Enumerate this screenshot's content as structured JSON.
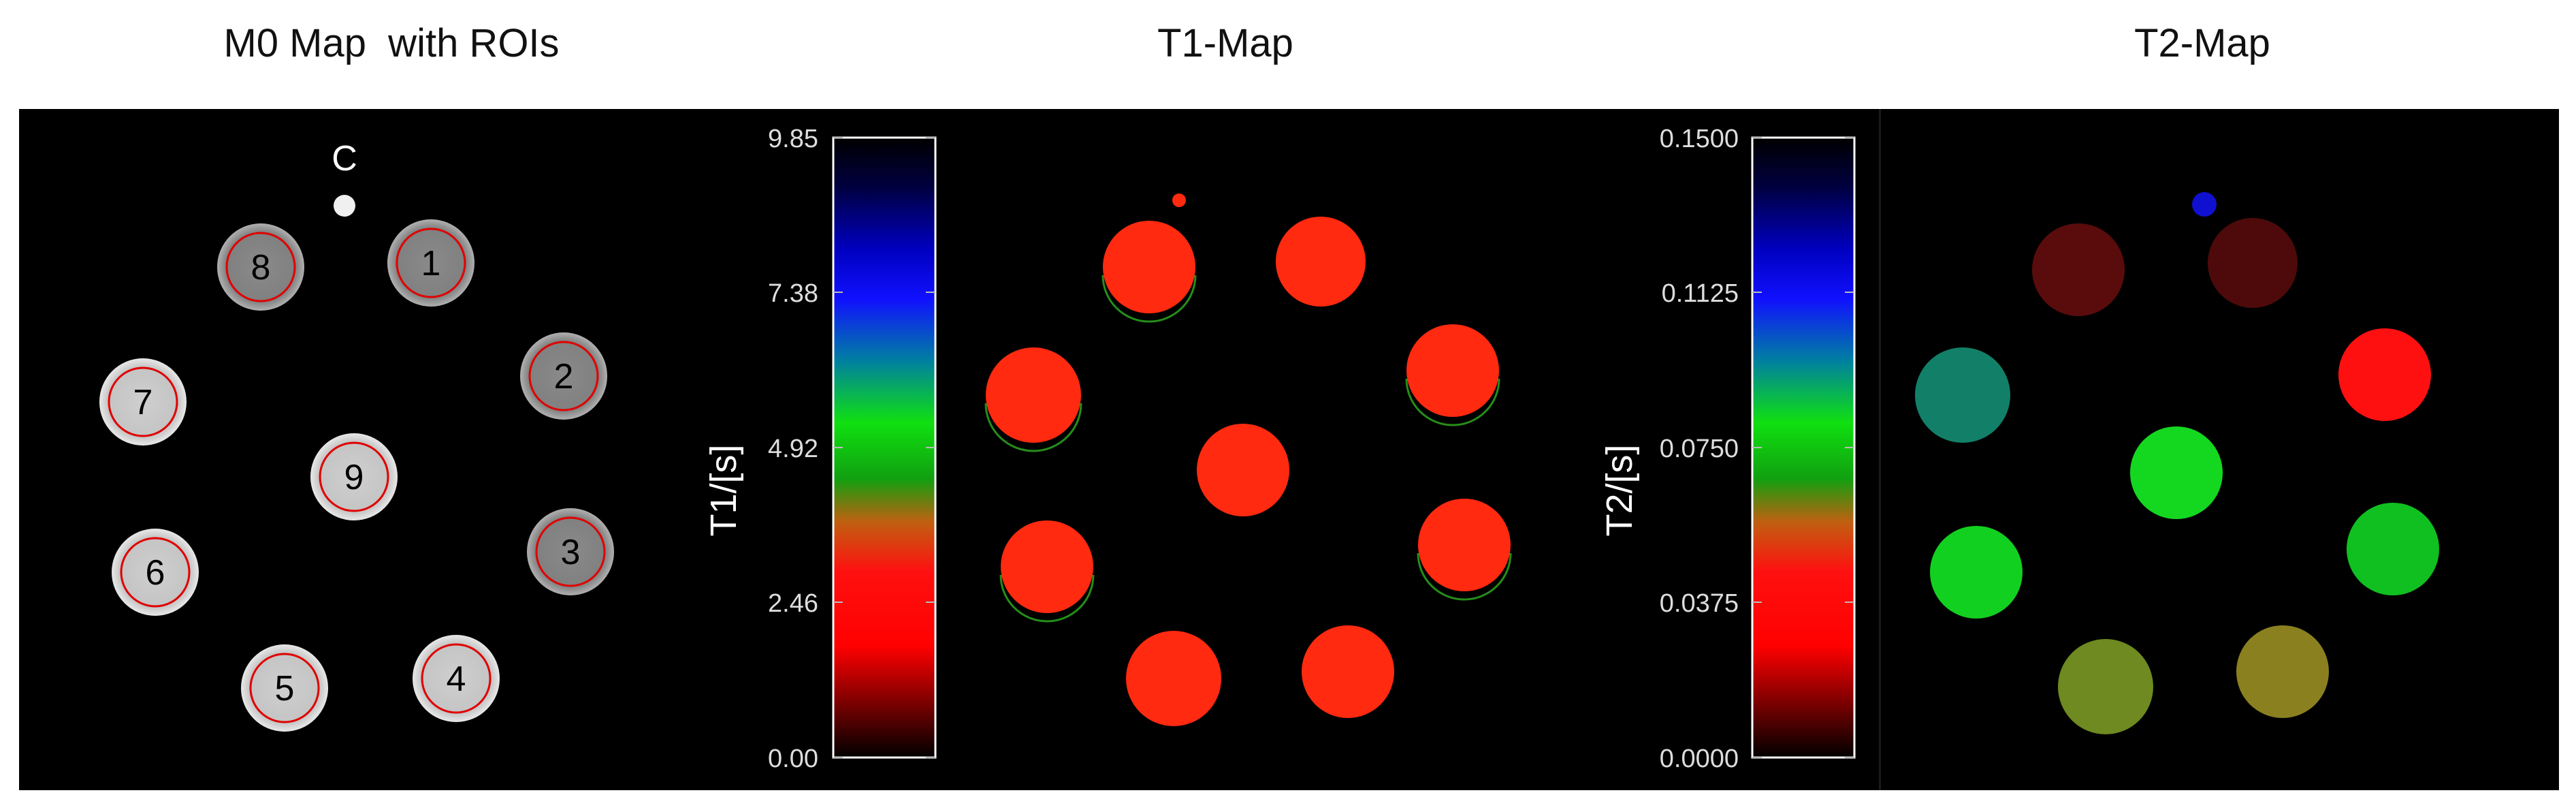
{
  "titles": {
    "m0": "M0 Map  with ROIs",
    "t1": "T1-Map",
    "t2": "T2-Map"
  },
  "m0_map": {
    "control_label": "C",
    "roi_labels": [
      "1",
      "2",
      "3",
      "4",
      "5",
      "6",
      "7",
      "8",
      "9"
    ]
  },
  "t1_colorbar": {
    "axis_label": "T1/[s]",
    "ticks": [
      "9.85",
      "7.38",
      "4.92",
      "2.46",
      "0.00"
    ]
  },
  "t2_colorbar": {
    "axis_label": "T2/[s]",
    "ticks": [
      "0.1500",
      "0.1125",
      "0.0750",
      "0.0375",
      "0.0000"
    ]
  },
  "colors": {
    "background": "#000000",
    "roi_outline": "#e00000",
    "t1_spot": "#ff2a10",
    "t2_dark_red": "#5a0c0c",
    "t2_red": "#ff1010",
    "t2_teal": "#128068",
    "t2_green": "#10e020",
    "t2_olive": "#7a8a20",
    "t2_blue": "#1010d0"
  }
}
